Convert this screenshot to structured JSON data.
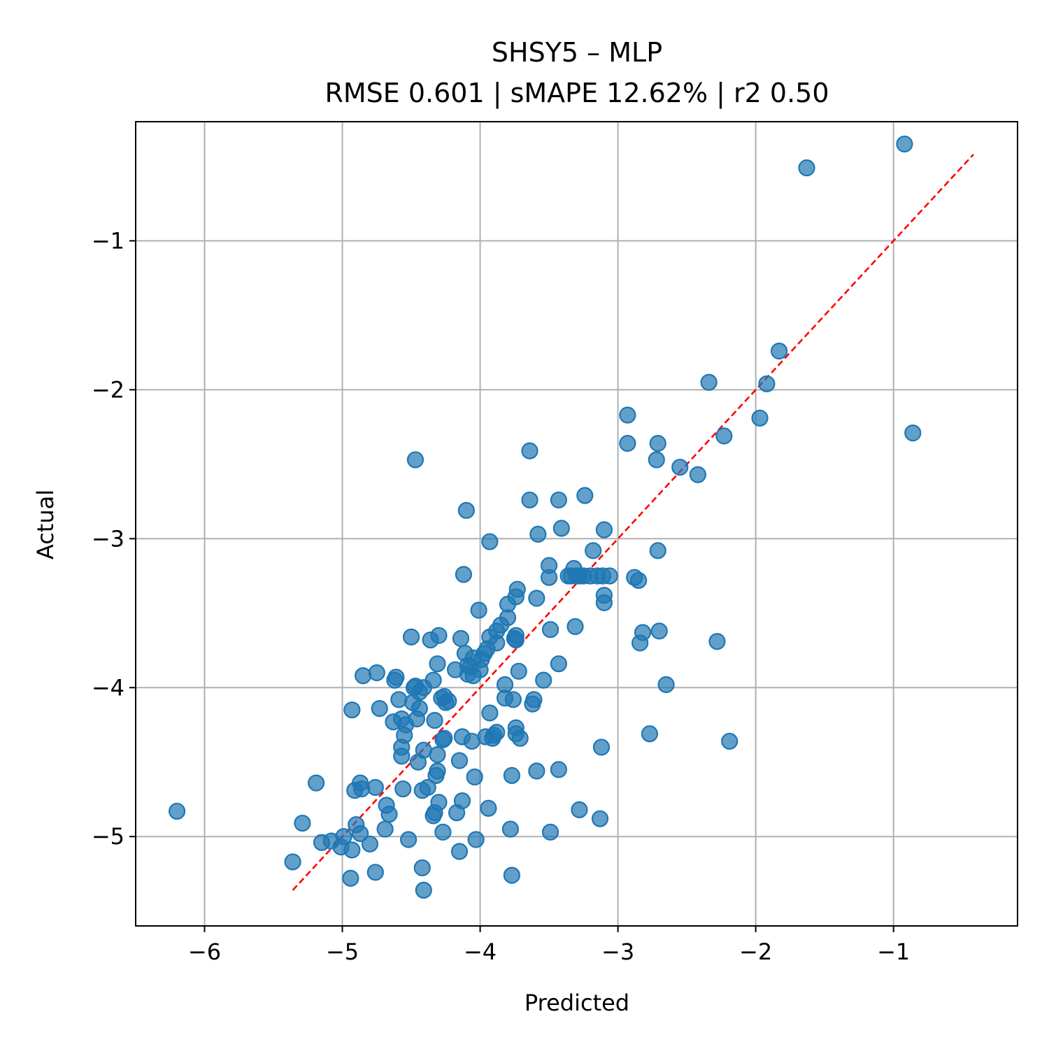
{
  "chart_data": {
    "type": "scatter",
    "title": "SHSY5 – MLP",
    "subtitle": "RMSE 0.601 | sMAPE 12.62%  | r2 0.50",
    "xlabel": "Predicted",
    "ylabel": "Actual",
    "xlim": [
      -6.5,
      -0.1
    ],
    "ylim": [
      -5.6,
      -0.2
    ],
    "xticks": [
      -6,
      -5,
      -4,
      -3,
      -2,
      -1
    ],
    "yticks": [
      -5,
      -4,
      -3,
      -2,
      -1
    ],
    "xtick_labels": [
      "−6",
      "−5",
      "−4",
      "−3",
      "−2",
      "−1"
    ],
    "ytick_labels": [
      "−5",
      "−4",
      "−3",
      "−2",
      "−1"
    ],
    "grid": true,
    "point_color": "#1f77b4",
    "point_alpha": 0.7,
    "reference_line": {
      "color": "#ff0000",
      "style": "dashed",
      "from": [
        -5.36,
        -5.36
      ],
      "to": [
        -0.42,
        -0.42
      ]
    },
    "points": [
      [
        -0.92,
        -0.35
      ],
      [
        -1.63,
        -0.51
      ],
      [
        -0.86,
        -2.29
      ],
      [
        -1.83,
        -1.74
      ],
      [
        -1.92,
        -1.96
      ],
      [
        -1.97,
        -2.19
      ],
      [
        -2.34,
        -1.95
      ],
      [
        -2.23,
        -2.31
      ],
      [
        -2.19,
        -4.36
      ],
      [
        -2.28,
        -3.69
      ],
      [
        -2.42,
        -2.57
      ],
      [
        -2.55,
        -2.52
      ],
      [
        -2.65,
        -3.98
      ],
      [
        -2.71,
        -2.36
      ],
      [
        -2.72,
        -2.47
      ],
      [
        -2.71,
        -3.08
      ],
      [
        -2.7,
        -3.62
      ],
      [
        -2.77,
        -4.31
      ],
      [
        -2.82,
        -3.63
      ],
      [
        -2.84,
        -3.7
      ],
      [
        -2.85,
        -3.28
      ],
      [
        -2.88,
        -3.26
      ],
      [
        -2.93,
        -2.17
      ],
      [
        -2.93,
        -2.36
      ],
      [
        -3.06,
        -3.25
      ],
      [
        -3.1,
        -3.38
      ],
      [
        -3.1,
        -3.43
      ],
      [
        -3.1,
        -2.94
      ],
      [
        -3.11,
        -3.25
      ],
      [
        -3.15,
        -3.25
      ],
      [
        -3.18,
        -3.08
      ],
      [
        -3.2,
        -3.25
      ],
      [
        -3.24,
        -2.71
      ],
      [
        -3.25,
        -3.25
      ],
      [
        -3.28,
        -3.25
      ],
      [
        -3.3,
        -3.25
      ],
      [
        -3.32,
        -3.2
      ],
      [
        -3.34,
        -3.25
      ],
      [
        -3.36,
        -3.25
      ],
      [
        -3.31,
        -3.59
      ],
      [
        -3.41,
        -2.93
      ],
      [
        -3.43,
        -2.74
      ],
      [
        -3.43,
        -3.84
      ],
      [
        -3.43,
        -4.55
      ],
      [
        -3.28,
        -4.82
      ],
      [
        -3.12,
        -4.4
      ],
      [
        -3.13,
        -4.88
      ],
      [
        -3.49,
        -3.61
      ],
      [
        -3.49,
        -4.97
      ],
      [
        -3.5,
        -3.26
      ],
      [
        -3.5,
        -3.18
      ],
      [
        -3.54,
        -3.95
      ],
      [
        -3.58,
        -2.97
      ],
      [
        -3.59,
        -3.4
      ],
      [
        -3.59,
        -4.56
      ],
      [
        -3.61,
        -4.08
      ],
      [
        -3.62,
        -4.11
      ],
      [
        -3.64,
        -2.41
      ],
      [
        -3.64,
        -2.74
      ],
      [
        -3.72,
        -3.89
      ],
      [
        -3.71,
        -4.34
      ],
      [
        -3.73,
        -3.34
      ],
      [
        -3.74,
        -3.39
      ],
      [
        -3.74,
        -3.65
      ],
      [
        -3.74,
        -3.68
      ],
      [
        -3.74,
        -4.27
      ],
      [
        -3.74,
        -4.31
      ],
      [
        -3.77,
        -4.59
      ],
      [
        -3.78,
        -4.95
      ],
      [
        -3.77,
        -5.26
      ],
      [
        -3.8,
        -3.44
      ],
      [
        -3.8,
        -3.53
      ],
      [
        -3.82,
        -3.98
      ],
      [
        -3.82,
        -4.07
      ],
      [
        -3.85,
        -3.58
      ],
      [
        -3.88,
        -3.62
      ],
      [
        -3.9,
        -4.32
      ],
      [
        -3.91,
        -4.34
      ],
      [
        -3.93,
        -3.66
      ],
      [
        -3.93,
        -3.02
      ],
      [
        -3.94,
        -4.81
      ],
      [
        -3.93,
        -4.17
      ],
      [
        -3.95,
        -3.74
      ],
      [
        -3.97,
        -3.77
      ],
      [
        -3.99,
        -3.81
      ],
      [
        -4.0,
        -3.88
      ],
      [
        -4.01,
        -3.48
      ],
      [
        -4.04,
        -4.6
      ],
      [
        -4.03,
        -5.02
      ],
      [
        -4.05,
        -3.92
      ],
      [
        -4.07,
        -3.86
      ],
      [
        -4.09,
        -3.91
      ],
      [
        -4.09,
        -3.85
      ],
      [
        -4.1,
        -2.81
      ],
      [
        -4.11,
        -3.77
      ],
      [
        -4.12,
        -3.24
      ],
      [
        -4.13,
        -4.33
      ],
      [
        -4.13,
        -4.76
      ],
      [
        -4.14,
        -3.67
      ],
      [
        -4.15,
        -4.49
      ],
      [
        -4.15,
        -5.1
      ],
      [
        -4.17,
        -4.84
      ],
      [
        -4.18,
        -3.88
      ],
      [
        -4.23,
        -4.09
      ],
      [
        -4.26,
        -4.06
      ],
      [
        -4.26,
        -4.34
      ],
      [
        -4.27,
        -4.97
      ],
      [
        -4.28,
        -4.07
      ],
      [
        -4.3,
        -3.65
      ],
      [
        -4.3,
        -4.77
      ],
      [
        -4.31,
        -4.45
      ],
      [
        -4.31,
        -4.56
      ],
      [
        -4.31,
        -3.84
      ],
      [
        -4.32,
        -4.59
      ],
      [
        -4.33,
        -4.84
      ],
      [
        -4.33,
        -4.22
      ],
      [
        -4.34,
        -4.86
      ],
      [
        -4.34,
        -3.95
      ],
      [
        -4.36,
        -3.68
      ],
      [
        -4.38,
        -4.67
      ],
      [
        -4.41,
        -5.36
      ],
      [
        -4.41,
        -4.0
      ],
      [
        -4.41,
        -4.42
      ],
      [
        -4.42,
        -5.21
      ],
      [
        -4.42,
        -4.69
      ],
      [
        -4.44,
        -4.03
      ],
      [
        -4.44,
        -4.14
      ],
      [
        -4.45,
        -4.5
      ],
      [
        -4.46,
        -4.21
      ],
      [
        -4.47,
        -3.99
      ],
      [
        -4.47,
        -2.47
      ],
      [
        -4.49,
        -4.1
      ],
      [
        -4.5,
        -3.66
      ],
      [
        -4.52,
        -5.02
      ],
      [
        -4.54,
        -4.25
      ],
      [
        -4.55,
        -4.32
      ],
      [
        -4.56,
        -4.68
      ],
      [
        -4.57,
        -4.46
      ],
      [
        -4.57,
        -4.4
      ],
      [
        -4.57,
        -4.21
      ],
      [
        -4.59,
        -4.08
      ],
      [
        -4.61,
        -3.93
      ],
      [
        -4.62,
        -3.95
      ],
      [
        -4.63,
        -4.23
      ],
      [
        -4.66,
        -4.85
      ],
      [
        -4.68,
        -4.79
      ],
      [
        -4.69,
        -4.95
      ],
      [
        -4.73,
        -4.14
      ],
      [
        -4.75,
        -3.9
      ],
      [
        -4.76,
        -4.67
      ],
      [
        -4.76,
        -5.24
      ],
      [
        -4.8,
        -5.05
      ],
      [
        -4.85,
        -3.92
      ],
      [
        -4.86,
        -4.68
      ],
      [
        -4.87,
        -4.64
      ],
      [
        -4.87,
        -4.98
      ],
      [
        -4.9,
        -4.92
      ],
      [
        -4.91,
        -4.69
      ],
      [
        -4.93,
        -4.15
      ],
      [
        -4.93,
        -5.09
      ],
      [
        -4.94,
        -5.28
      ],
      [
        -4.99,
        -5.0
      ],
      [
        -5.01,
        -5.07
      ],
      [
        -5.08,
        -5.03
      ],
      [
        -5.15,
        -5.04
      ],
      [
        -5.19,
        -4.64
      ],
      [
        -5.29,
        -4.91
      ],
      [
        -5.36,
        -5.17
      ],
      [
        -6.2,
        -4.83
      ],
      [
        -3.96,
        -4.33
      ],
      [
        -3.88,
        -4.3
      ],
      [
        -3.75,
        -3.67
      ],
      [
        -4.06,
        -4.36
      ],
      [
        -4.27,
        -4.35
      ],
      [
        -4.25,
        -4.1
      ],
      [
        -4.48,
        -4.0
      ],
      [
        -4.05,
        -3.8
      ],
      [
        -3.76,
        -4.08
      ],
      [
        -3.88,
        -3.7
      ]
    ]
  }
}
